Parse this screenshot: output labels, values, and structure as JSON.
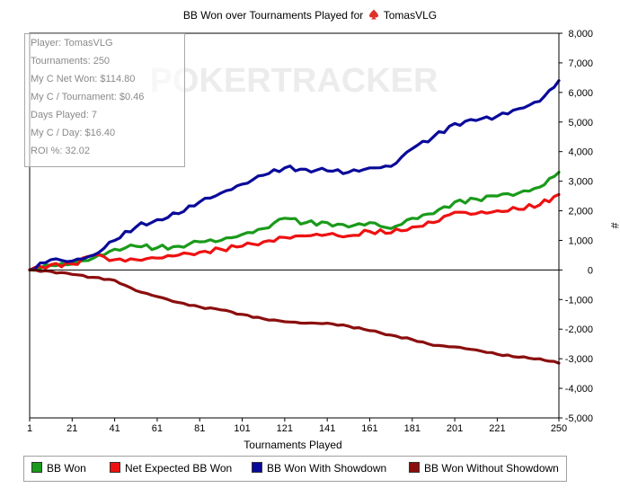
{
  "chart_data": {
    "type": "line",
    "title": "BB Won over Tournaments Played for",
    "player_name": "TomasVLG",
    "watermark": "POKERTRACKER",
    "xlabel": "Tournaments Played",
    "ylabel": "#",
    "xlim": [
      1,
      250
    ],
    "ylim": [
      -5000,
      8000
    ],
    "x_ticks": [
      1,
      21,
      41,
      61,
      81,
      101,
      121,
      141,
      161,
      181,
      201,
      221,
      250
    ],
    "y_ticks": [
      -5000,
      -4000,
      -3000,
      -2000,
      -1000,
      0,
      1000,
      2000,
      3000,
      4000,
      5000,
      6000,
      7000,
      8000
    ],
    "y_tick_labels": [
      "-5,000",
      "-4,000",
      "-3,000",
      "-2,000",
      "-1,000",
      "0",
      "1,000",
      "2,000",
      "3,000",
      "4,000",
      "5,000",
      "6,000",
      "7,000",
      "8,000"
    ],
    "x": [
      1,
      11,
      21,
      31,
      41,
      51,
      61,
      71,
      81,
      91,
      101,
      111,
      121,
      131,
      141,
      151,
      161,
      171,
      181,
      191,
      201,
      211,
      221,
      231,
      241,
      250
    ],
    "series": [
      {
        "name": "BB Won",
        "color": "#1a9a1a",
        "values": [
          0,
          150,
          200,
          400,
          700,
          800,
          750,
          800,
          950,
          1000,
          1200,
          1400,
          1750,
          1600,
          1600,
          1450,
          1600,
          1400,
          1750,
          1900,
          2300,
          2400,
          2500,
          2600,
          2800,
          3300
        ]
      },
      {
        "name": "Net Expected BB Won",
        "color": "#ee1111",
        "values": [
          0,
          180,
          200,
          500,
          350,
          350,
          400,
          500,
          600,
          700,
          800,
          950,
          1100,
          1150,
          1200,
          1150,
          1300,
          1250,
          1450,
          1600,
          1950,
          1900,
          2000,
          2050,
          2200,
          2550
        ]
      },
      {
        "name": "BB Won With Showdown",
        "color": "#0a0a9a",
        "values": [
          0,
          350,
          300,
          500,
          1000,
          1450,
          1700,
          1900,
          2300,
          2600,
          2900,
          3200,
          3450,
          3400,
          3350,
          3300,
          3450,
          3500,
          4100,
          4500,
          4950,
          5050,
          5200,
          5450,
          5700,
          6400
        ]
      },
      {
        "name": "BB Won Without Showdown",
        "color": "#8b0e0e",
        "values": [
          0,
          -50,
          -150,
          -250,
          -350,
          -700,
          -900,
          -1100,
          -1250,
          -1350,
          -1500,
          -1650,
          -1750,
          -1800,
          -1800,
          -1900,
          -2050,
          -2200,
          -2350,
          -2550,
          -2600,
          -2700,
          -2850,
          -2950,
          -3000,
          -3150
        ]
      }
    ]
  },
  "stats": {
    "player": "Player: TomasVLG",
    "tournaments": "Tournaments: 250",
    "net_won": "My C Net Won: $114.80",
    "per_tournament": "My C / Tournament: $0.46",
    "days_played": "Days Played: 7",
    "per_day": "My C / Day: $16.40",
    "roi": "ROI %: 32.02"
  },
  "legend": {
    "items": [
      {
        "label": "BB Won",
        "color": "#1a9a1a"
      },
      {
        "label": "Net Expected BB Won",
        "color": "#ee1111"
      },
      {
        "label": "BB Won With Showdown",
        "color": "#0a0a9a"
      },
      {
        "label": "BB Won Without Showdown",
        "color": "#8b0e0e"
      }
    ]
  }
}
